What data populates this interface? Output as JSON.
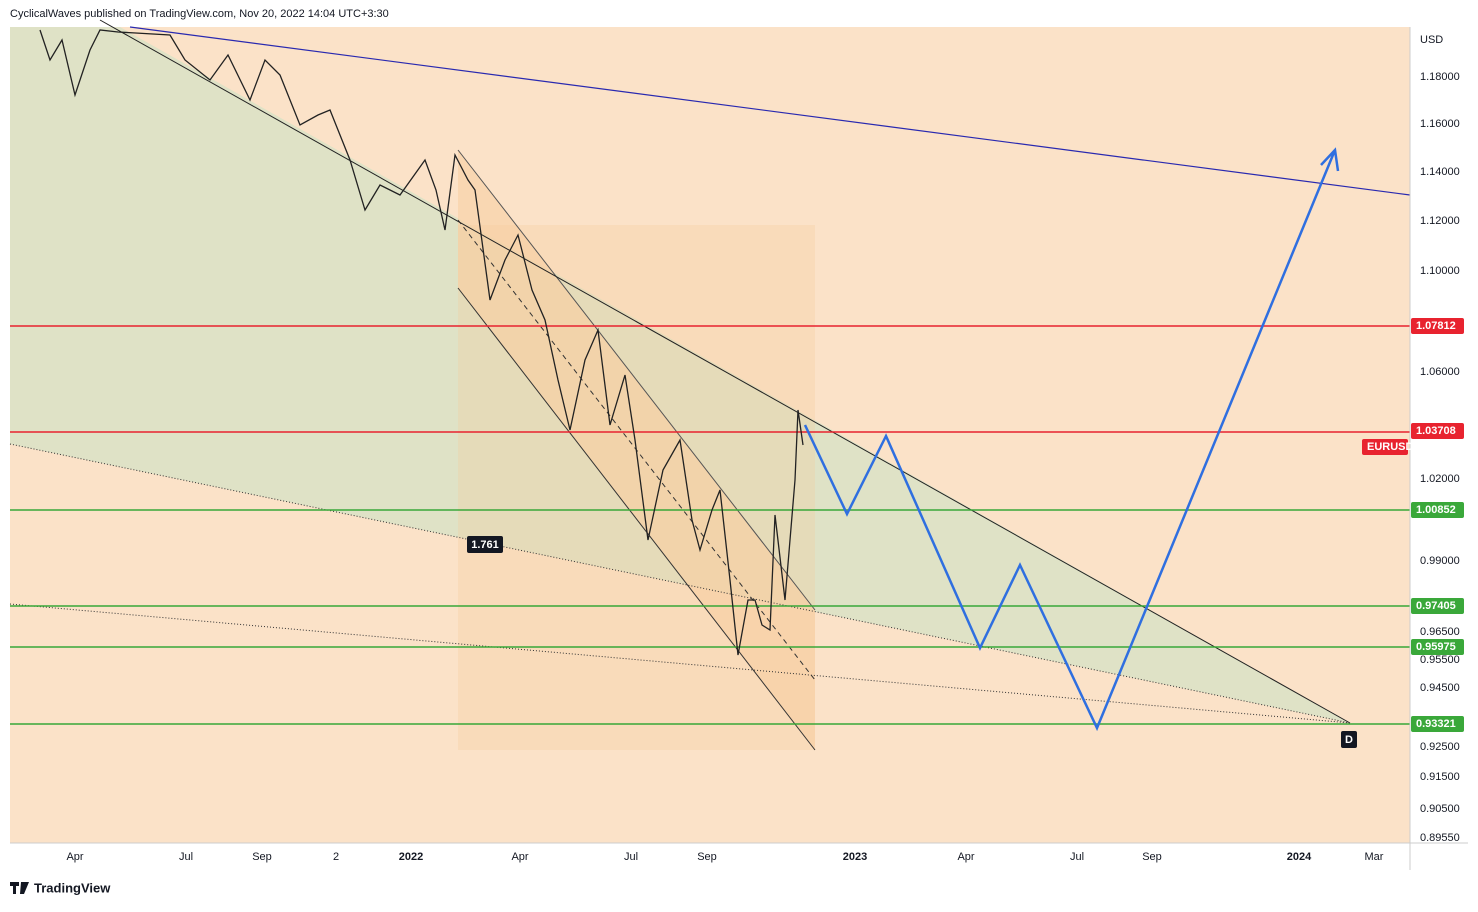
{
  "header": {
    "byline": "CyclicalWaves published on TradingView.com, Nov 20, 2022 14:04 UTC+3:30"
  },
  "price_axis": {
    "currency": "USD",
    "labels": [
      "1.18000",
      "1.16000",
      "1.14000",
      "1.12000",
      "1.10000",
      "1.06000",
      "1.02000",
      "0.99000",
      "0.96500",
      "0.95500",
      "0.94500",
      "0.92500",
      "0.91500",
      "0.90500",
      "0.89550"
    ]
  },
  "level_tags": {
    "red": [
      "1.07812",
      "1.03708"
    ],
    "symbol": "EURUSD",
    "green": [
      "1.00852",
      "0.97405",
      "0.95975",
      "0.93321"
    ]
  },
  "time_axis": {
    "labels": [
      "Apr",
      "Jul",
      "Sep",
      "2",
      "2022",
      "Apr",
      "Jul",
      "Sep",
      "2023",
      "Apr",
      "Jul",
      "Sep",
      "2024",
      "Mar"
    ]
  },
  "annotations": {
    "ratio": "1.761",
    "point": "D"
  },
  "footer": {
    "brand": "TradingView"
  }
}
